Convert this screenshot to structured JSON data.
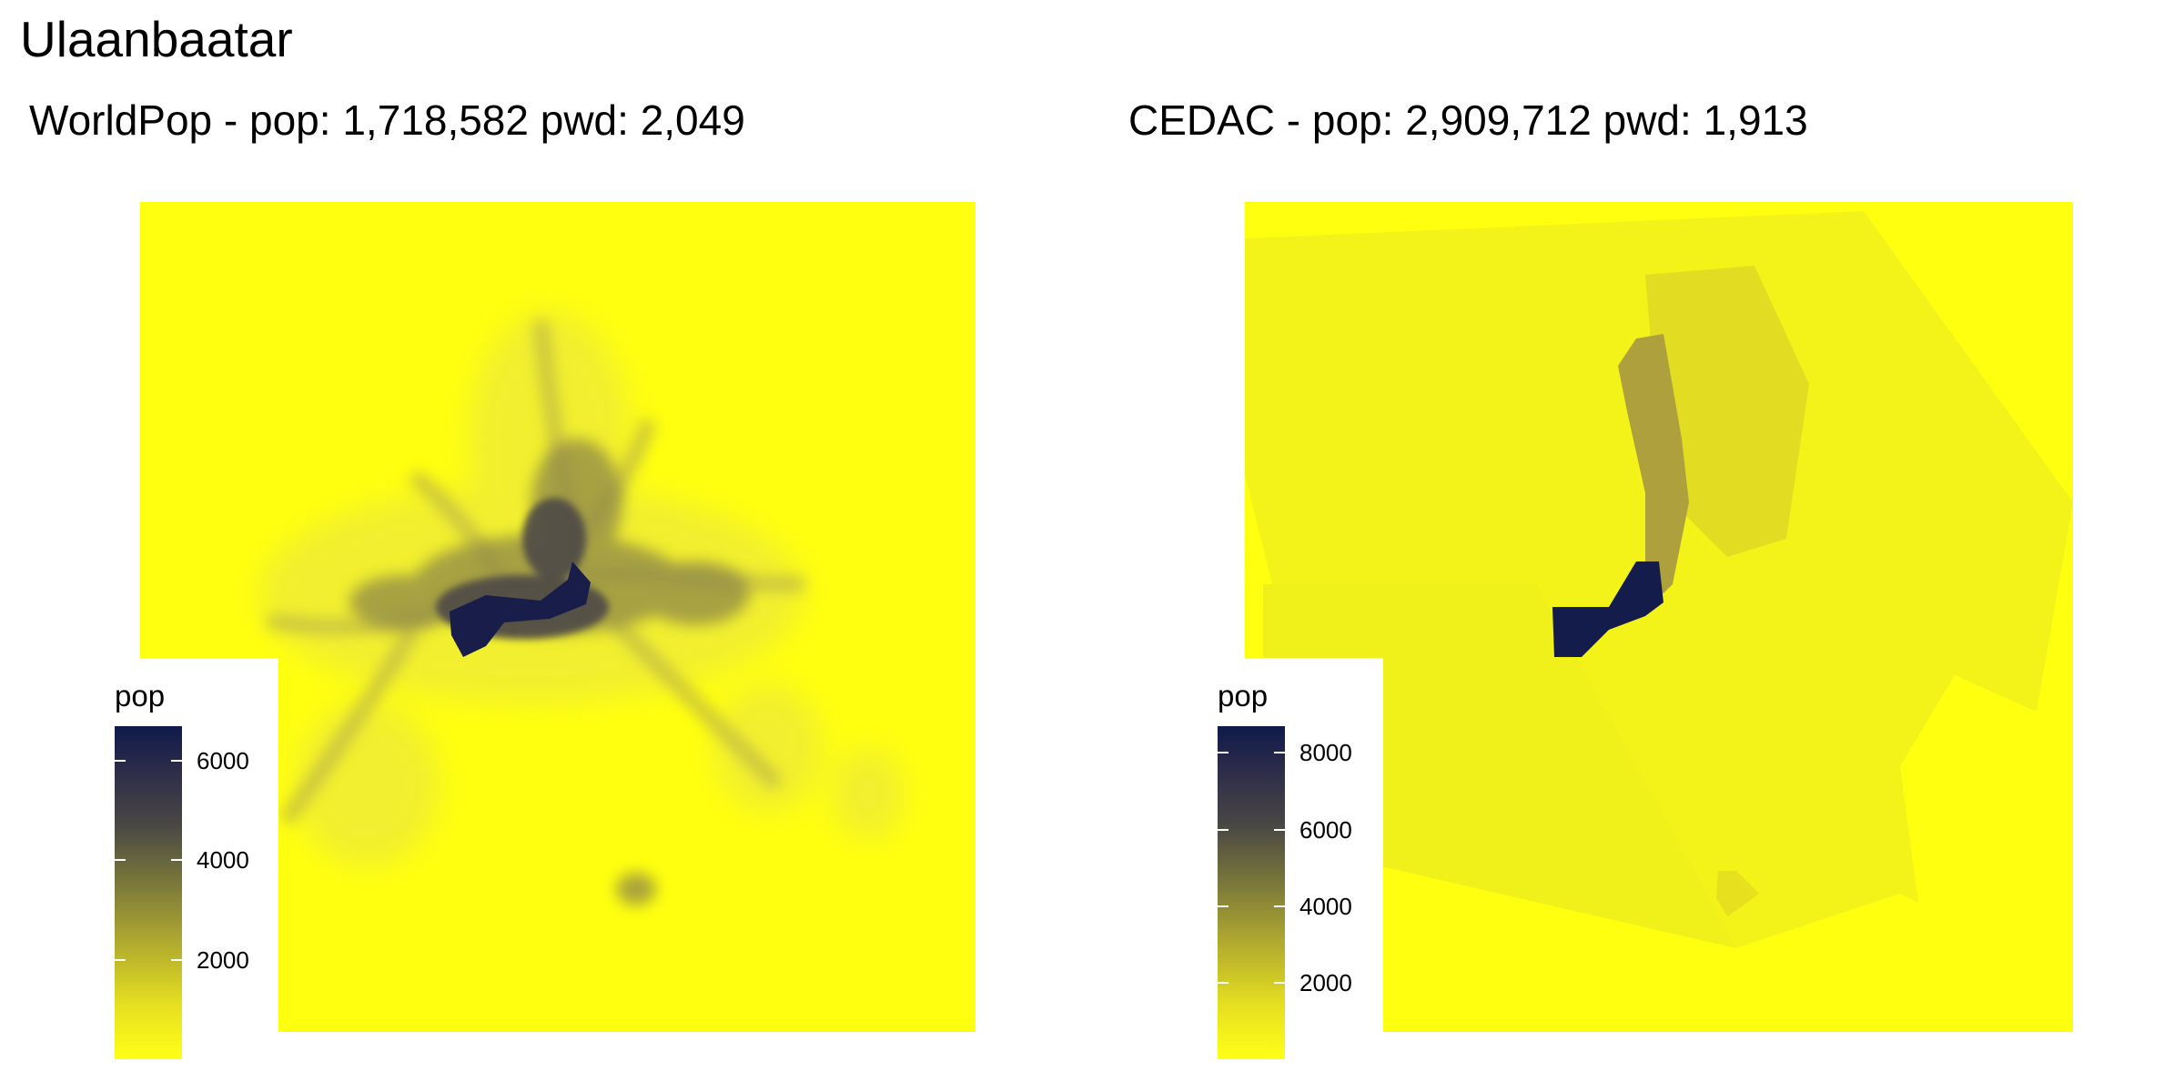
{
  "title": "Ulaanbaatar",
  "panels": [
    {
      "title": "WorldPop - pop: 1,718,582 pwd: 2,049",
      "legend": {
        "title": "pop",
        "min": 0,
        "max": 6700,
        "ticks": [
          6000,
          4000,
          2000
        ]
      }
    },
    {
      "title": "CEDAC - pop: 2,909,712 pwd: 1,913",
      "legend": {
        "title": "pop",
        "min": 0,
        "max": 8700,
        "ticks": [
          8000,
          6000,
          4000,
          2000
        ]
      }
    }
  ],
  "colors": {
    "low": "#ffff10",
    "high": "#0f1a4a"
  }
}
